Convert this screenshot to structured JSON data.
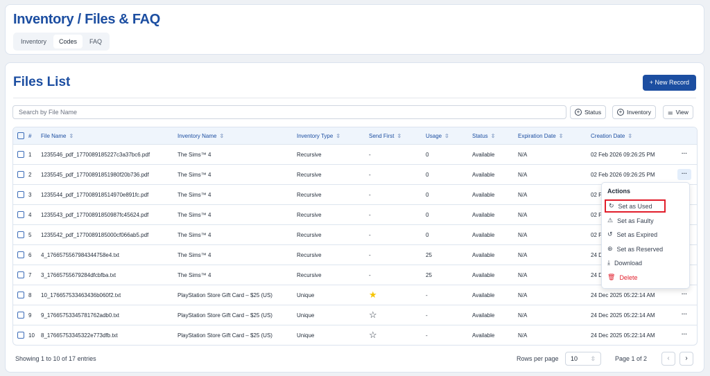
{
  "header": {
    "title": "Inventory / Files & FAQ",
    "tabs": [
      {
        "label": "Inventory"
      },
      {
        "label": "Codes",
        "active": true
      },
      {
        "label": "FAQ"
      }
    ]
  },
  "files": {
    "title": "Files List",
    "new_record": "+ New Record",
    "search_placeholder": "Search by File Name",
    "filters": [
      {
        "label": "Status",
        "icon": "plus-circle-icon"
      },
      {
        "label": "Inventory",
        "icon": "plus-circle-icon"
      },
      {
        "label": "View",
        "icon": "sliders-icon"
      }
    ],
    "columns": [
      "#",
      "File Name",
      "Inventory Name",
      "Inventory Type",
      "Send First",
      "Usage",
      "Status",
      "Expiration Date",
      "Creation Date"
    ],
    "rows": [
      {
        "n": "1",
        "file": "1235546_pdf_1770089185227c3a37bc6.pdf",
        "inv": "The Sims™ 4",
        "type": "Recursive",
        "send": "-",
        "usage": "0",
        "status": "Available",
        "exp": "N/A",
        "created": "02 Feb 2026 09:26:25 PM"
      },
      {
        "n": "2",
        "file": "1235545_pdf_17700891851980f20b736.pdf",
        "inv": "The Sims™ 4",
        "type": "Recursive",
        "send": "-",
        "usage": "0",
        "status": "Available",
        "exp": "N/A",
        "created": "02 Feb 2026 09:26:25 PM"
      },
      {
        "n": "3",
        "file": "1235544_pdf_177008918514970e891fc.pdf",
        "inv": "The Sims™ 4",
        "type": "Recursive",
        "send": "-",
        "usage": "0",
        "status": "Available",
        "exp": "N/A",
        "created": "02 Feb 2026 09:26:25 PM"
      },
      {
        "n": "4",
        "file": "1235543_pdf_17700891850987fc45624.pdf",
        "inv": "The Sims™ 4",
        "type": "Recursive",
        "send": "-",
        "usage": "0",
        "status": "Available",
        "exp": "N/A",
        "created": "02 Feb 2026 09:26:25 PM"
      },
      {
        "n": "5",
        "file": "1235542_pdf_1770089185000cf066ab5.pdf",
        "inv": "The Sims™ 4",
        "type": "Recursive",
        "send": "-",
        "usage": "0",
        "status": "Available",
        "exp": "N/A",
        "created": "02 Feb 2026 09:26:25 PM"
      },
      {
        "n": "6",
        "file": "4_1766575567984344758e4.txt",
        "inv": "The Sims™ 4",
        "type": "Recursive",
        "send": "-",
        "usage": "25",
        "status": "Available",
        "exp": "N/A",
        "created": "24 Dec 2025 05:22:14 AM"
      },
      {
        "n": "7",
        "file": "3_17665755679284dfcbfba.txt",
        "inv": "The Sims™ 4",
        "type": "Recursive",
        "send": "-",
        "usage": "25",
        "status": "Available",
        "exp": "N/A",
        "created": "24 Dec 2025 05:22:14 AM"
      },
      {
        "n": "8",
        "file": "10_176657533463436b060f2.txt",
        "inv": "PlayStation Store Gift Card – $25 (US)",
        "type": "Unique",
        "send": "star-filled",
        "usage": "-",
        "status": "Available",
        "exp": "N/A",
        "created": "24 Dec 2025 05:22:14 AM"
      },
      {
        "n": "9",
        "file": "9_17665753345781762adb0.txt",
        "inv": "PlayStation Store Gift Card – $25 (US)",
        "type": "Unique",
        "send": "star-outline",
        "usage": "-",
        "status": "Available",
        "exp": "N/A",
        "created": "24 Dec 2025 05:22:14 AM"
      },
      {
        "n": "10",
        "file": "8_17665753345322e773dfb.txt",
        "inv": "PlayStation Store Gift Card – $25 (US)",
        "type": "Unique",
        "send": "star-outline",
        "usage": "-",
        "status": "Available",
        "exp": "N/A",
        "created": "24 Dec 2025 05:22:14 AM"
      }
    ],
    "footer": {
      "showing": "Showing 1 to 10 of 17 entries",
      "rows_per_page_label": "Rows per page",
      "rows_per_page": "10",
      "page": "Page 1 of 2"
    }
  },
  "menu": {
    "title": "Actions",
    "items": [
      {
        "label": "Set as Used",
        "icon": "refresh-icon"
      },
      {
        "label": "Set as Faulty",
        "icon": "warning-icon"
      },
      {
        "label": "Set as Expired",
        "icon": "history-icon"
      },
      {
        "label": "Set as Reserved",
        "icon": "reserved-icon"
      },
      {
        "label": "Download",
        "icon": "download-icon"
      },
      {
        "label": "Delete",
        "icon": "trash-icon"
      }
    ]
  },
  "colors": {
    "brand": "#1c4ea1",
    "danger": "#e11d2a",
    "star": "#f5c400"
  }
}
